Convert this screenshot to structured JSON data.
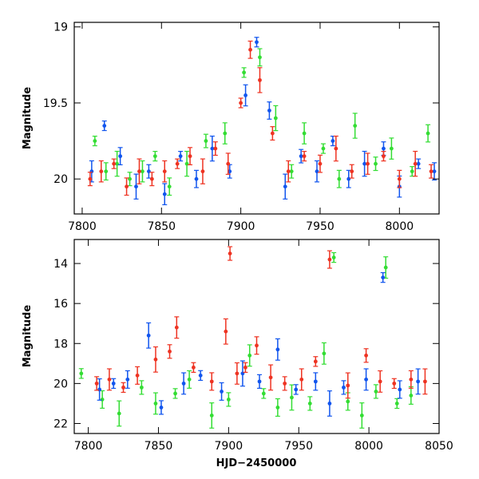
{
  "chart_data": [
    {
      "type": "scatter",
      "panel": "top",
      "xlabel": "",
      "ylabel": "Magnitude",
      "xlim": [
        7795,
        8025
      ],
      "ylim": [
        20.23,
        18.97
      ],
      "y_inverted": true,
      "xticks": [
        7800,
        7850,
        7900,
        7950,
        8000
      ],
      "yticks": [
        19,
        19.5,
        20
      ],
      "error_bars": true,
      "series": [
        {
          "color": "#33dd33",
          "x": [
            7808,
            7815,
            7822,
            7830,
            7838,
            7846,
            7855,
            7866,
            7878,
            7890,
            7902,
            7912,
            7922,
            7932,
            7940,
            7952,
            7962,
            7972,
            7985,
            7995,
            8008,
            8018
          ],
          "y": [
            19.75,
            19.95,
            19.9,
            20.0,
            19.95,
            19.85,
            20.05,
            19.9,
            19.75,
            19.7,
            19.3,
            19.2,
            19.6,
            19.95,
            19.7,
            19.8,
            20.0,
            19.65,
            19.9,
            19.8,
            19.95,
            19.7
          ]
        },
        {
          "color": "#1155ee",
          "x": [
            7806,
            7814,
            7824,
            7834,
            7842,
            7852,
            7862,
            7872,
            7882,
            7893,
            7903,
            7910,
            7918,
            7928,
            7938,
            7948,
            7958,
            7968,
            7978,
            7990,
            8000,
            8012,
            8022
          ],
          "y": [
            19.95,
            19.65,
            19.85,
            20.05,
            19.95,
            20.1,
            19.85,
            20.0,
            19.8,
            19.95,
            19.45,
            19.1,
            19.55,
            20.05,
            19.85,
            19.95,
            19.75,
            20.0,
            19.9,
            19.8,
            20.05,
            19.9,
            19.95
          ]
        },
        {
          "color": "#ee3322",
          "x": [
            7805,
            7812,
            7820,
            7828,
            7836,
            7844,
            7852,
            7860,
            7868,
            7876,
            7884,
            7892,
            7900,
            7906,
            7912,
            7920,
            7930,
            7940,
            7950,
            7960,
            7970,
            7980,
            7990,
            8000,
            8010,
            8020
          ],
          "y": [
            20.0,
            19.95,
            19.9,
            20.05,
            19.95,
            20.0,
            19.95,
            19.9,
            19.85,
            19.95,
            19.8,
            19.9,
            19.5,
            19.15,
            19.35,
            19.7,
            19.95,
            19.85,
            19.9,
            19.8,
            19.95,
            19.9,
            19.85,
            20.0,
            19.9,
            19.95
          ]
        }
      ]
    },
    {
      "type": "scatter",
      "panel": "bottom",
      "xlabel": "HJD−2450000",
      "ylabel": "Magnitude",
      "xlim": [
        7790,
        8050
      ],
      "ylim": [
        22.5,
        12.8
      ],
      "y_inverted": true,
      "xticks": [
        7800,
        7850,
        7900,
        7950,
        8000,
        8050
      ],
      "yticks": [
        14,
        16,
        18,
        20,
        22
      ],
      "error_bars": true,
      "series": [
        {
          "color": "#33dd33",
          "x": [
            7795,
            7810,
            7822,
            7838,
            7848,
            7862,
            7872,
            7888,
            7900,
            7915,
            7925,
            7935,
            7945,
            7958,
            7968,
            7975,
            7985,
            7995,
            8005,
            8012,
            8020,
            8030
          ],
          "y": [
            19.5,
            20.8,
            21.5,
            20.2,
            21.0,
            20.5,
            19.8,
            21.6,
            20.8,
            18.6,
            20.5,
            21.2,
            20.7,
            21.0,
            18.5,
            13.7,
            20.9,
            21.6,
            20.4,
            14.2,
            21.0,
            20.6
          ]
        },
        {
          "color": "#1155ee",
          "x": [
            7808,
            7818,
            7828,
            7843,
            7852,
            7868,
            7880,
            7895,
            7910,
            7922,
            7935,
            7948,
            7962,
            7972,
            7982,
            7998,
            8010,
            8022,
            8035
          ],
          "y": [
            20.3,
            20.0,
            19.8,
            17.6,
            21.2,
            20.0,
            19.6,
            20.4,
            19.5,
            19.9,
            18.3,
            20.3,
            19.9,
            21.0,
            20.2,
            19.8,
            14.7,
            20.3,
            19.9
          ]
        },
        {
          "color": "#ee3322",
          "x": [
            7806,
            7815,
            7825,
            7835,
            7848,
            7858,
            7863,
            7875,
            7888,
            7898,
            7901,
            7906,
            7912,
            7920,
            7930,
            7940,
            7952,
            7962,
            7972,
            7985,
            7998,
            8008,
            8018,
            8030,
            8040
          ],
          "y": [
            20.0,
            19.8,
            20.2,
            19.6,
            18.8,
            18.4,
            17.2,
            19.2,
            19.9,
            17.4,
            13.5,
            19.5,
            19.2,
            18.1,
            19.7,
            20.0,
            19.8,
            18.9,
            13.8,
            20.1,
            18.6,
            19.9,
            20.0,
            19.8,
            19.9
          ]
        }
      ]
    }
  ]
}
